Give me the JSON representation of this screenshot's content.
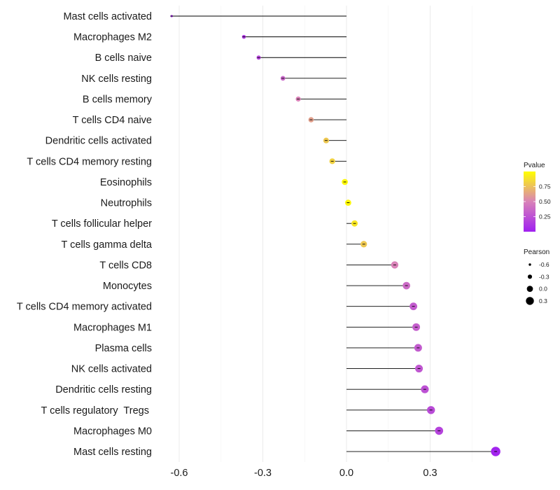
{
  "chart_data": {
    "type": "lollipop",
    "title": "",
    "xlabel": "",
    "ylabel": "",
    "xlim": [
      -0.65,
      0.56
    ],
    "xticks": [
      -0.6,
      -0.3,
      0.0,
      0.3
    ],
    "xtick_labels": [
      "-0.6",
      "-0.3",
      "0.0",
      "0.3"
    ],
    "grid": true,
    "points": [
      {
        "label": "Mast cells activated",
        "pearson": -0.627,
        "pvalue": 0.05
      },
      {
        "label": "Macrophages M2",
        "pearson": -0.368,
        "pvalue": 0.12
      },
      {
        "label": "B cells naive",
        "pearson": -0.315,
        "pvalue": 0.18
      },
      {
        "label": "NK cells resting",
        "pearson": -0.228,
        "pvalue": 0.35
      },
      {
        "label": "B cells memory",
        "pearson": -0.173,
        "pvalue": 0.5
      },
      {
        "label": "T cells CD4 naive",
        "pearson": -0.127,
        "pvalue": 0.62
      },
      {
        "label": "Dendritic cells activated",
        "pearson": -0.073,
        "pvalue": 0.78
      },
      {
        "label": "T cells CD4 memory resting",
        "pearson": -0.051,
        "pvalue": 0.82
      },
      {
        "label": "Eosinophils",
        "pearson": -0.006,
        "pvalue": 0.97
      },
      {
        "label": "Neutrophils",
        "pearson": 0.006,
        "pvalue": 0.97
      },
      {
        "label": "T cells follicular helper",
        "pearson": 0.029,
        "pvalue": 0.9
      },
      {
        "label": "T cells gamma delta",
        "pearson": 0.062,
        "pvalue": 0.78
      },
      {
        "label": "T cells CD8",
        "pearson": 0.173,
        "pvalue": 0.5
      },
      {
        "label": "Monocytes",
        "pearson": 0.215,
        "pvalue": 0.38
      },
      {
        "label": "T cells CD4 memory activated",
        "pearson": 0.24,
        "pvalue": 0.3
      },
      {
        "label": "Macrophages M1",
        "pearson": 0.25,
        "pvalue": 0.32
      },
      {
        "label": "Plasma cells",
        "pearson": 0.257,
        "pvalue": 0.3
      },
      {
        "label": "NK cells activated",
        "pearson": 0.26,
        "pvalue": 0.28
      },
      {
        "label": "Dendritic cells resting",
        "pearson": 0.281,
        "pvalue": 0.25
      },
      {
        "label": "T cells regulatory  Tregs ",
        "pearson": 0.303,
        "pvalue": 0.22
      },
      {
        "label": "Macrophages M0",
        "pearson": 0.332,
        "pvalue": 0.18
      },
      {
        "label": "Mast cells resting",
        "pearson": 0.535,
        "pvalue": 0.02
      }
    ],
    "legend_color": {
      "title": "Pvalue",
      "ticks": [
        0.75,
        0.5,
        0.25
      ],
      "tick_labels": [
        "0.75",
        "0.50",
        "0.25"
      ],
      "range": [
        0.0,
        1.0
      ],
      "colors": [
        "#a020f0",
        "#d982b8",
        "#ffff00"
      ],
      "placement": "right"
    },
    "legend_size": {
      "title": "Pearson",
      "values": [
        -0.6,
        -0.3,
        0.0,
        0.3
      ],
      "labels": [
        "-0.6",
        "-0.3",
        "0.0",
        "0.3"
      ],
      "placement": "right"
    }
  }
}
